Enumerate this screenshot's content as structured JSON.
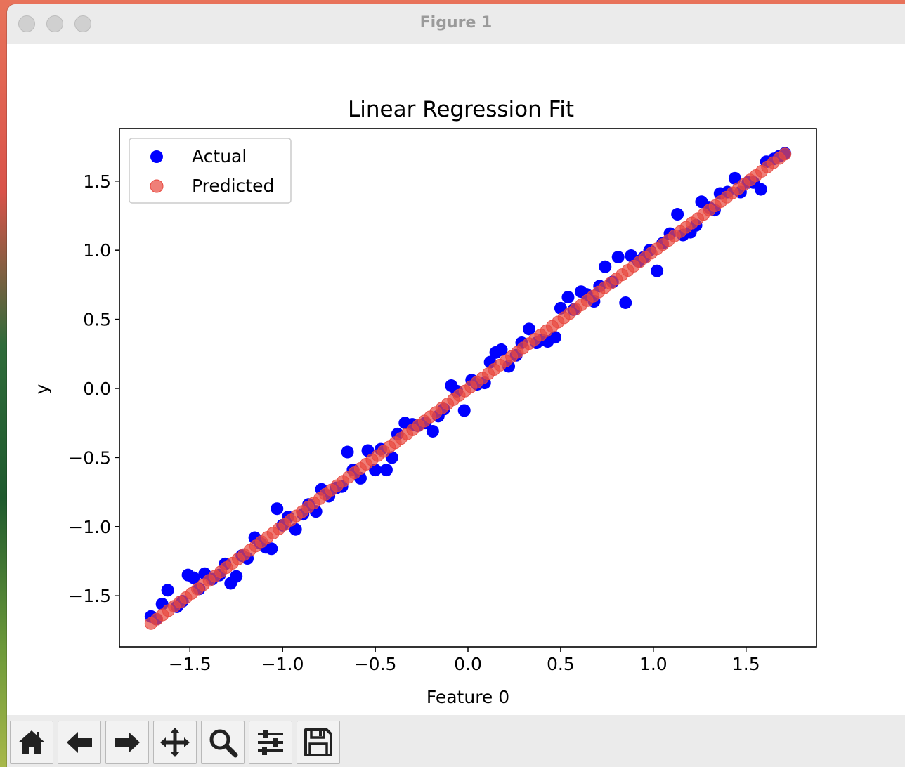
{
  "window": {
    "title": "Figure 1"
  },
  "toolbar": {
    "buttons": [
      {
        "name": "home-button",
        "icon": "home-icon"
      },
      {
        "name": "back-button",
        "icon": "arrow-left-icon"
      },
      {
        "name": "forward-button",
        "icon": "arrow-right-icon"
      },
      {
        "name": "pan-button",
        "icon": "move-icon"
      },
      {
        "name": "zoom-button",
        "icon": "search-icon"
      },
      {
        "name": "configure-subplots-button",
        "icon": "sliders-icon"
      },
      {
        "name": "save-button",
        "icon": "floppy-disk-icon"
      }
    ]
  },
  "chart_data": {
    "type": "scatter",
    "title": "Linear Regression Fit",
    "xlabel": "Feature 0",
    "ylabel": "y",
    "xlim": [
      -1.88,
      1.88
    ],
    "ylim": [
      -1.87,
      1.88
    ],
    "xticks": [
      -1.5,
      -1.0,
      -0.5,
      0.0,
      0.5,
      1.0,
      1.5
    ],
    "xtick_labels": [
      "−1.5",
      "−1.0",
      "−0.5",
      "0.0",
      "0.5",
      "1.0",
      "1.5"
    ],
    "yticks": [
      -1.5,
      -1.0,
      -0.5,
      0.0,
      0.5,
      1.0,
      1.5
    ],
    "ytick_labels": [
      "−1.5",
      "−1.0",
      "−0.5",
      "0.0",
      "0.5",
      "1.0",
      "1.5"
    ],
    "grid": false,
    "legend": "top-left",
    "series": [
      {
        "name": "Actual",
        "color": "#0000ff",
        "points": [
          [
            -1.71,
            -1.65
          ],
          [
            -1.68,
            -1.67
          ],
          [
            -1.65,
            -1.56
          ],
          [
            -1.62,
            -1.46
          ],
          [
            -1.57,
            -1.58
          ],
          [
            -1.54,
            -1.54
          ],
          [
            -1.51,
            -1.35
          ],
          [
            -1.48,
            -1.37
          ],
          [
            -1.45,
            -1.45
          ],
          [
            -1.42,
            -1.34
          ],
          [
            -1.38,
            -1.38
          ],
          [
            -1.34,
            -1.35
          ],
          [
            -1.31,
            -1.27
          ],
          [
            -1.28,
            -1.41
          ],
          [
            -1.25,
            -1.36
          ],
          [
            -1.22,
            -1.21
          ],
          [
            -1.19,
            -1.23
          ],
          [
            -1.15,
            -1.08
          ],
          [
            -1.12,
            -1.12
          ],
          [
            -1.09,
            -1.15
          ],
          [
            -1.06,
            -1.16
          ],
          [
            -1.03,
            -0.87
          ],
          [
            -1.0,
            -0.99
          ],
          [
            -0.97,
            -0.93
          ],
          [
            -0.93,
            -1.02
          ],
          [
            -0.89,
            -0.91
          ],
          [
            -0.86,
            -0.84
          ],
          [
            -0.82,
            -0.89
          ],
          [
            -0.79,
            -0.73
          ],
          [
            -0.75,
            -0.78
          ],
          [
            -0.71,
            -0.72
          ],
          [
            -0.68,
            -0.71
          ],
          [
            -0.65,
            -0.46
          ],
          [
            -0.62,
            -0.59
          ],
          [
            -0.58,
            -0.65
          ],
          [
            -0.54,
            -0.45
          ],
          [
            -0.5,
            -0.59
          ],
          [
            -0.47,
            -0.44
          ],
          [
            -0.44,
            -0.59
          ],
          [
            -0.41,
            -0.5
          ],
          [
            -0.38,
            -0.33
          ],
          [
            -0.34,
            -0.25
          ],
          [
            -0.3,
            -0.26
          ],
          [
            -0.27,
            -0.27
          ],
          [
            -0.23,
            -0.25
          ],
          [
            -0.19,
            -0.31
          ],
          [
            -0.16,
            -0.2
          ],
          [
            -0.13,
            -0.15
          ],
          [
            -0.09,
            0.02
          ],
          [
            -0.06,
            -0.02
          ],
          [
            -0.02,
            -0.16
          ],
          [
            0.02,
            0.06
          ],
          [
            0.05,
            0.03
          ],
          [
            0.09,
            0.04
          ],
          [
            0.12,
            0.19
          ],
          [
            0.15,
            0.26
          ],
          [
            0.18,
            0.28
          ],
          [
            0.22,
            0.16
          ],
          [
            0.26,
            0.24
          ],
          [
            0.29,
            0.33
          ],
          [
            0.33,
            0.43
          ],
          [
            0.37,
            0.33
          ],
          [
            0.4,
            0.35
          ],
          [
            0.43,
            0.34
          ],
          [
            0.47,
            0.37
          ],
          [
            0.5,
            0.58
          ],
          [
            0.54,
            0.66
          ],
          [
            0.57,
            0.57
          ],
          [
            0.61,
            0.7
          ],
          [
            0.64,
            0.68
          ],
          [
            0.68,
            0.63
          ],
          [
            0.71,
            0.74
          ],
          [
            0.74,
            0.88
          ],
          [
            0.78,
            0.77
          ],
          [
            0.81,
            0.95
          ],
          [
            0.85,
            0.62
          ],
          [
            0.88,
            0.96
          ],
          [
            0.92,
            0.92
          ],
          [
            0.95,
            0.95
          ],
          [
            0.98,
            1.0
          ],
          [
            1.02,
            0.85
          ],
          [
            1.05,
            1.05
          ],
          [
            1.09,
            1.12
          ],
          [
            1.13,
            1.26
          ],
          [
            1.16,
            1.11
          ],
          [
            1.2,
            1.13
          ],
          [
            1.23,
            1.18
          ],
          [
            1.26,
            1.35
          ],
          [
            1.3,
            1.31
          ],
          [
            1.33,
            1.29
          ],
          [
            1.36,
            1.41
          ],
          [
            1.4,
            1.42
          ],
          [
            1.44,
            1.52
          ],
          [
            1.47,
            1.42
          ],
          [
            1.51,
            1.49
          ],
          [
            1.54,
            1.49
          ],
          [
            1.58,
            1.44
          ],
          [
            1.61,
            1.64
          ],
          [
            1.65,
            1.66
          ],
          [
            1.68,
            1.68
          ],
          [
            1.71,
            1.7
          ]
        ]
      },
      {
        "name": "Predicted",
        "color": "#e8483f",
        "alpha": 0.7,
        "line_fit": {
          "slope": 0.993,
          "intercept": -0.003
        },
        "x_range": [
          -1.71,
          1.71
        ],
        "n_points": 110
      }
    ]
  }
}
